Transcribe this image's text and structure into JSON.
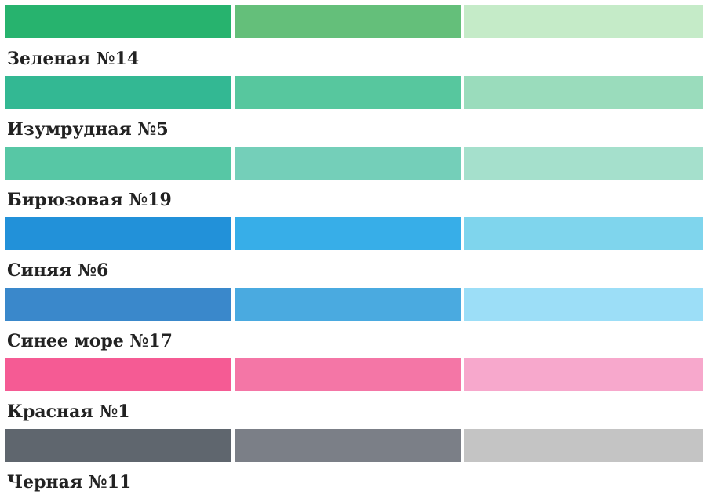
{
  "palettes": [
    {
      "name": "Зеленая №14",
      "colors": [
        "#27b36e",
        "#64bf7a",
        "#c5ebc8"
      ]
    },
    {
      "name": "Изумрудная №5",
      "colors": [
        "#33b893",
        "#57c79e",
        "#9adcbc"
      ]
    },
    {
      "name": "Бирюзовая №19",
      "colors": [
        "#57c7a5",
        "#74cfb9",
        "#a5e0cc"
      ]
    },
    {
      "name": "Синяя №6",
      "colors": [
        "#2291d9",
        "#37aee8",
        "#7fd5ed"
      ]
    },
    {
      "name": "Синее море №17",
      "colors": [
        "#3a88cb",
        "#4aaae0",
        "#9cdef7"
      ]
    },
    {
      "name": "Красная №1",
      "colors": [
        "#f55b94",
        "#f476a6",
        "#f7a8cc"
      ]
    },
    {
      "name": "Черная №11",
      "colors": [
        "#5f666e",
        "#7b7f87",
        "#c4c4c4"
      ]
    }
  ]
}
